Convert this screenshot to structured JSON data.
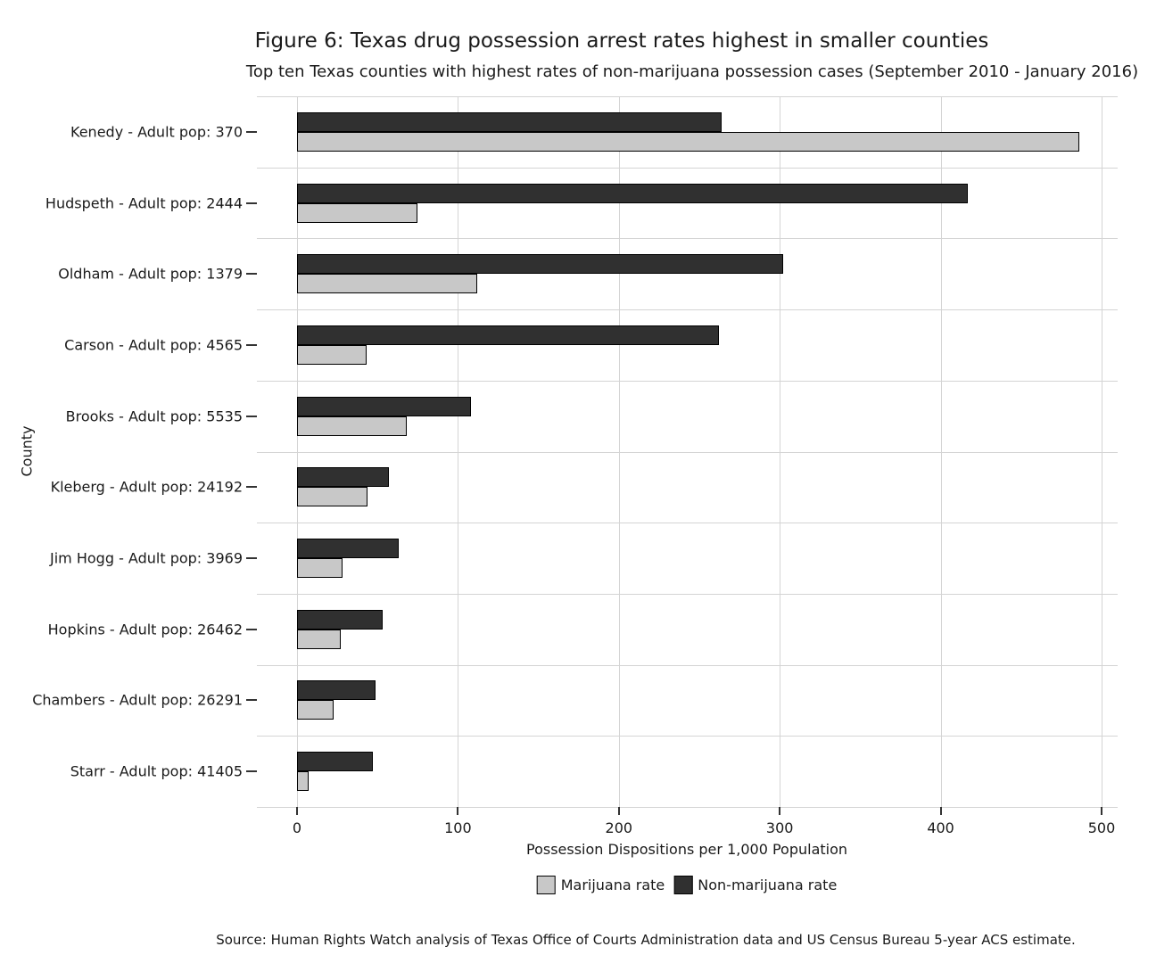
{
  "title": "Figure 6: Texas drug possession arrest rates highest in smaller counties",
  "subtitle": "Top ten Texas counties with highest rates of non-marijuana possession cases (September 2010 - January 2016)",
  "source": "Source: Human Rights Watch analysis of Texas Office of Courts Administration data and US Census Bureau 5-year ACS estimate.",
  "chart_data": {
    "type": "bar",
    "orientation": "horizontal",
    "title": "Figure 6: Texas drug possession arrest rates highest in smaller counties",
    "subtitle": "Top ten Texas counties with highest rates of non-marijuana possession cases (September 2010 - January 2016)",
    "xlabel": "Possession Dispositions per 1,000 Population",
    "ylabel": "County",
    "xlim": [
      0,
      500
    ],
    "xticks": [
      0,
      100,
      200,
      300,
      400,
      500
    ],
    "grid": true,
    "legend_position": "bottom",
    "categories": [
      "Kenedy - Adult pop: 370",
      "Hudspeth - Adult pop: 2444",
      "Oldham - Adult pop: 1379",
      "Carson - Adult pop: 4565",
      "Brooks - Adult pop: 5535",
      "Kleberg - Adult pop: 24192",
      "Jim Hogg - Adult pop: 3969",
      "Hopkins - Adult pop: 26462",
      "Chambers - Adult pop: 26291",
      "Starr - Adult pop: 41405"
    ],
    "series": [
      {
        "name": "Non-marijuana rate",
        "color": "#303030",
        "values": [
          264,
          417,
          302,
          262,
          108,
          57,
          63,
          53,
          49,
          47
        ]
      },
      {
        "name": "Marijuana rate",
        "color": "#c8c8c8",
        "values": [
          486,
          75,
          112,
          43,
          68,
          44,
          28,
          27,
          23,
          7
        ]
      }
    ]
  },
  "legend": {
    "items": [
      {
        "label": "Marijuana rate",
        "color": "#c8c8c8"
      },
      {
        "label": "Non-marijuana rate",
        "color": "#303030"
      }
    ]
  },
  "colors": {
    "grid": "#d4d4d4",
    "tick": "#333333",
    "text": "#1a1a1a",
    "background": "#ffffff"
  }
}
